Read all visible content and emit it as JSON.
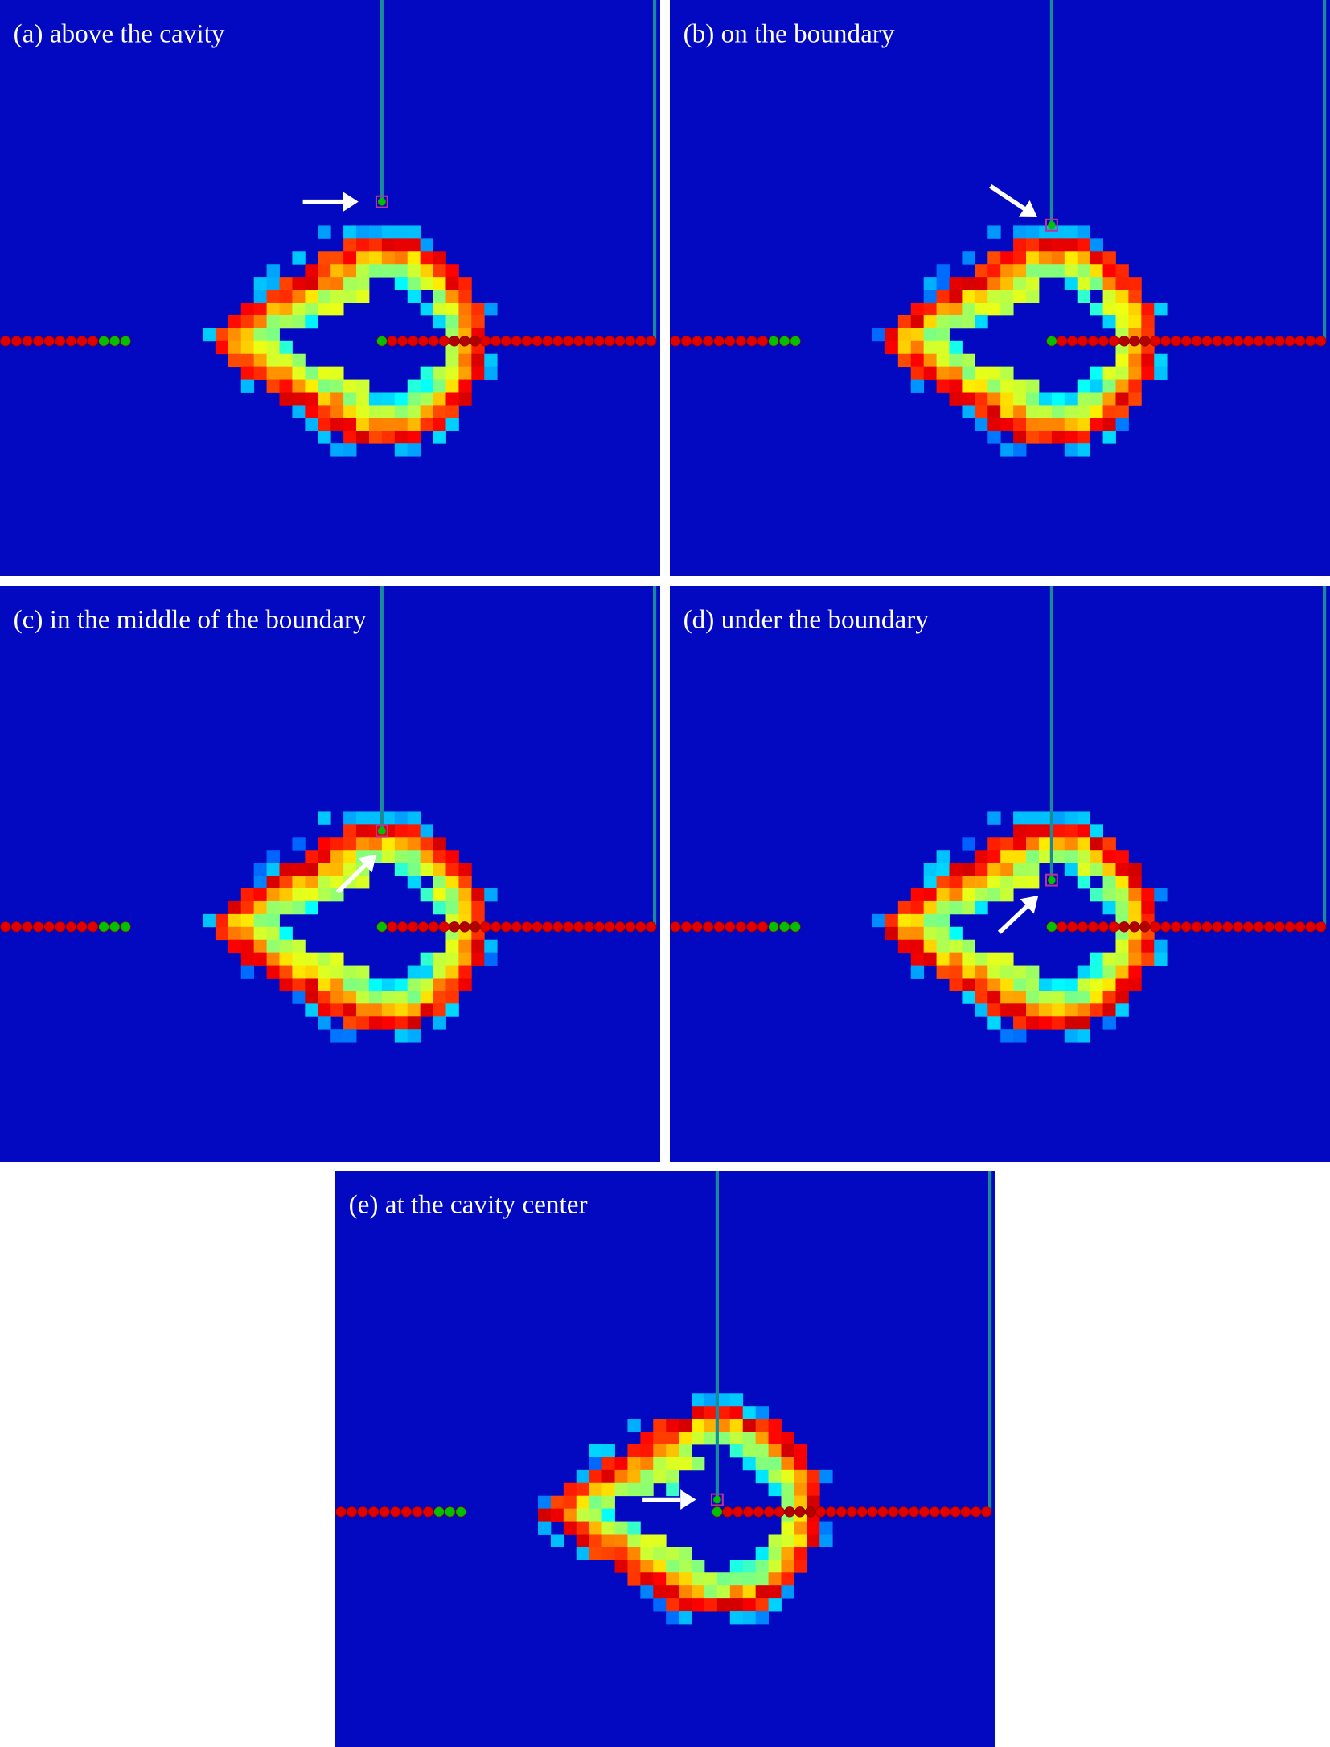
{
  "colors": {
    "background": "#0209c0",
    "probe_line": "#1a8a9a",
    "particle_red": "#e00000",
    "particle_green": "#00c000",
    "probe_marker_outline": "#c03090",
    "arrow": "#ffffff"
  },
  "panels": [
    {
      "id": "a",
      "label": "(a) above the cavity"
    },
    {
      "id": "b",
      "label": "(b) on the boundary"
    },
    {
      "id": "c",
      "label": "(c) in the middle of the boundary"
    },
    {
      "id": "d",
      "label": "(d) under the boundary"
    },
    {
      "id": "e",
      "label": "(e) at the cavity center"
    }
  ]
}
